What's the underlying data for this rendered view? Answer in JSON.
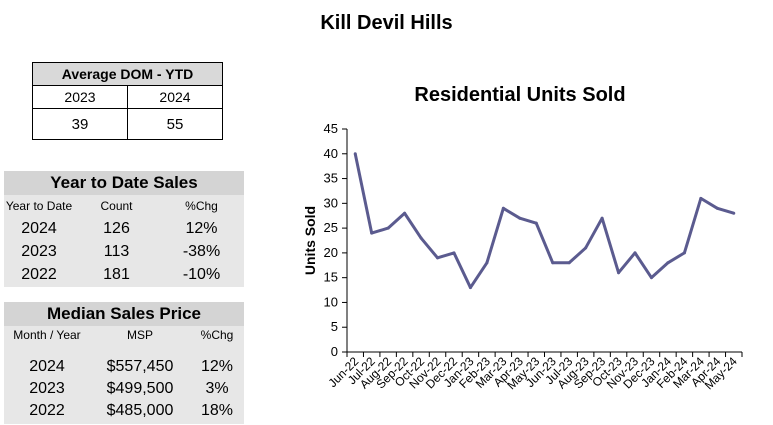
{
  "page_title": "Kill Devil Hills",
  "dom": {
    "title": "Average DOM - YTD",
    "years": [
      "2023",
      "2024"
    ],
    "values": [
      "39",
      "55"
    ]
  },
  "ytd_sales": {
    "title": "Year to Date Sales",
    "headers": [
      "Year to Date",
      "Count",
      "%Chg"
    ],
    "rows": [
      [
        "2024",
        "126",
        "12%"
      ],
      [
        "2023",
        "113",
        "-38%"
      ],
      [
        "2022",
        "181",
        "-10%"
      ]
    ]
  },
  "median_price": {
    "title": "Median Sales Price",
    "headers": [
      "Month / Year",
      "MSP",
      "%Chg"
    ],
    "rows": [
      [
        "2024",
        "$557,450",
        "12%"
      ],
      [
        "2023",
        "$499,500",
        "3%"
      ],
      [
        "2022",
        "$485,000",
        "18%"
      ]
    ]
  },
  "chart_data": {
    "type": "line",
    "title": "Residential Units Sold",
    "ylabel": "Units Sold",
    "xlabel": "",
    "ylim": [
      0,
      45
    ],
    "yticks": [
      0,
      5,
      10,
      15,
      20,
      25,
      30,
      35,
      40,
      45
    ],
    "categories": [
      "Jun-22",
      "Jul-22",
      "Aug-22",
      "Sep-22",
      "Oct-22",
      "Nov-22",
      "Dec-22",
      "Jan-23",
      "Feb-23",
      "Mar-23",
      "Apr-23",
      "May-23",
      "Jun-23",
      "Jul-23",
      "Aug-23",
      "Sep-23",
      "Oct-23",
      "Nov-23",
      "Dec-23",
      "Jan-24",
      "Feb-24",
      "Mar-24",
      "Apr-24",
      "May-24"
    ],
    "series": [
      {
        "values": [
          40,
          24,
          25,
          28,
          23,
          19,
          20,
          13,
          18,
          29,
          27,
          26,
          18,
          18,
          21,
          27,
          16,
          20,
          15,
          18,
          20,
          31,
          29,
          28
        ]
      }
    ],
    "line_color": "#5b5b8f",
    "grid": false
  }
}
